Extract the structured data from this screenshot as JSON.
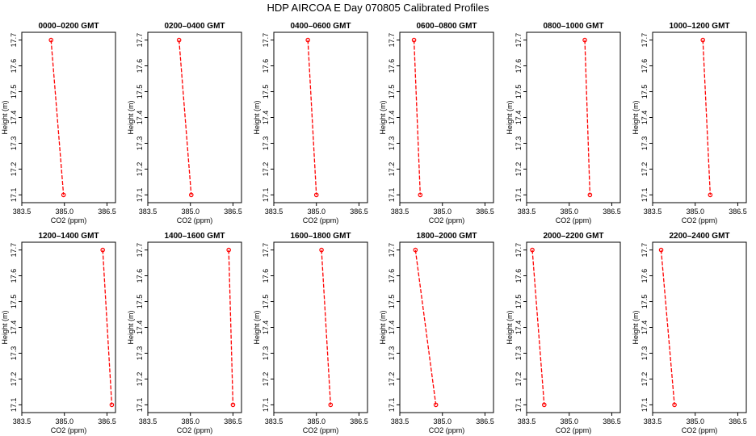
{
  "title": "HDP  AIRCOA E  Day 070805  Calibrated Profiles",
  "chart_data": [
    {
      "type": "line",
      "title": "0000–0200 GMT",
      "xlabel": "CO2 (ppm)",
      "ylabel": "Height (m)",
      "xlim": [
        383.5,
        386.8
      ],
      "ylim": [
        17.07,
        17.73
      ],
      "xticks": [
        "383.5",
        "385.0",
        "386.5"
      ],
      "yticks": [
        "17.1",
        "17.2",
        "17.3",
        "17.4",
        "17.5",
        "17.6",
        "17.7"
      ],
      "series": [
        {
          "color": "#ff0000",
          "x": [
            384.53,
            384.97
          ],
          "y": [
            17.7,
            17.1
          ]
        }
      ]
    },
    {
      "type": "line",
      "title": "0200–0400 GMT",
      "xlabel": "CO2 (ppm)",
      "ylabel": "Height (m)",
      "xlim": [
        383.5,
        386.8
      ],
      "ylim": [
        17.07,
        17.73
      ],
      "xticks": [
        "383.5",
        "385.0",
        "386.5"
      ],
      "yticks": [
        "17.1",
        "17.2",
        "17.3",
        "17.4",
        "17.5",
        "17.6",
        "17.7"
      ],
      "series": [
        {
          "color": "#ff0000",
          "x": [
            384.6,
            385.03
          ],
          "y": [
            17.7,
            17.1
          ]
        }
      ]
    },
    {
      "type": "line",
      "title": "0400–0600 GMT",
      "xlabel": "CO2 (ppm)",
      "ylabel": "Height (m)",
      "xlim": [
        383.5,
        386.8
      ],
      "ylim": [
        17.07,
        17.73
      ],
      "xticks": [
        "383.5",
        "385.0",
        "386.5"
      ],
      "yticks": [
        "17.1",
        "17.2",
        "17.3",
        "17.4",
        "17.5",
        "17.6",
        "17.7"
      ],
      "series": [
        {
          "color": "#ff0000",
          "x": [
            384.7,
            385.0
          ],
          "y": [
            17.7,
            17.1
          ]
        }
      ]
    },
    {
      "type": "line",
      "title": "0600–0800 GMT",
      "xlabel": "CO2 (ppm)",
      "ylabel": "Height (m)",
      "xlim": [
        383.5,
        386.8
      ],
      "ylim": [
        17.07,
        17.73
      ],
      "xticks": [
        "383.5",
        "385.0",
        "386.5"
      ],
      "yticks": [
        "17.1",
        "17.2",
        "17.3",
        "17.4",
        "17.5",
        "17.6",
        "17.7"
      ],
      "series": [
        {
          "color": "#ff0000",
          "x": [
            384.0,
            384.22
          ],
          "y": [
            17.7,
            17.1
          ]
        }
      ]
    },
    {
      "type": "line",
      "title": "0800–1000 GMT",
      "xlabel": "CO2 (ppm)",
      "ylabel": "Height (m)",
      "xlim": [
        383.5,
        386.8
      ],
      "ylim": [
        17.07,
        17.73
      ],
      "xticks": [
        "383.5",
        "385.0",
        "386.5"
      ],
      "yticks": [
        "17.1",
        "17.2",
        "17.3",
        "17.4",
        "17.5",
        "17.6",
        "17.7"
      ],
      "series": [
        {
          "color": "#ff0000",
          "x": [
            385.55,
            385.73
          ],
          "y": [
            17.7,
            17.1
          ]
        }
      ]
    },
    {
      "type": "line",
      "title": "1000–1200 GMT",
      "xlabel": "CO2 (ppm)",
      "ylabel": "Height (m)",
      "xlim": [
        383.5,
        386.8
      ],
      "ylim": [
        17.07,
        17.73
      ],
      "xticks": [
        "383.5",
        "385.0",
        "386.5"
      ],
      "yticks": [
        "17.1",
        "17.2",
        "17.3",
        "17.4",
        "17.5",
        "17.6",
        "17.7"
      ],
      "series": [
        {
          "color": "#ff0000",
          "x": [
            385.27,
            385.53
          ],
          "y": [
            17.7,
            17.1
          ]
        }
      ]
    },
    {
      "type": "line",
      "title": "1200–1400 GMT",
      "xlabel": "CO2 (ppm)",
      "ylabel": "Height (m)",
      "xlim": [
        383.5,
        386.8
      ],
      "ylim": [
        17.07,
        17.73
      ],
      "xticks": [
        "383.5",
        "385.0",
        "386.5"
      ],
      "yticks": [
        "17.1",
        "17.2",
        "17.3",
        "17.4",
        "17.5",
        "17.6",
        "17.7"
      ],
      "series": [
        {
          "color": "#ff0000",
          "x": [
            386.35,
            386.67
          ],
          "y": [
            17.7,
            17.1
          ]
        }
      ]
    },
    {
      "type": "line",
      "title": "1400–1600 GMT",
      "xlabel": "CO2 (ppm)",
      "ylabel": "Height (m)",
      "xlim": [
        383.5,
        386.8
      ],
      "ylim": [
        17.07,
        17.73
      ],
      "xticks": [
        "383.5",
        "385.0",
        "386.5"
      ],
      "yticks": [
        "17.1",
        "17.2",
        "17.3",
        "17.4",
        "17.5",
        "17.6",
        "17.7"
      ],
      "series": [
        {
          "color": "#ff0000",
          "x": [
            386.35,
            386.5
          ],
          "y": [
            17.7,
            17.1
          ]
        }
      ]
    },
    {
      "type": "line",
      "title": "1600–1800 GMT",
      "xlabel": "CO2 (ppm)",
      "ylabel": "Height (m)",
      "xlim": [
        383.5,
        386.8
      ],
      "ylim": [
        17.07,
        17.73
      ],
      "xticks": [
        "383.5",
        "385.0",
        "386.5"
      ],
      "yticks": [
        "17.1",
        "17.2",
        "17.3",
        "17.4",
        "17.5",
        "17.6",
        "17.7"
      ],
      "series": [
        {
          "color": "#ff0000",
          "x": [
            385.18,
            385.5
          ],
          "y": [
            17.7,
            17.1
          ]
        }
      ]
    },
    {
      "type": "line",
      "title": "1800–2000 GMT",
      "xlabel": "CO2 (ppm)",
      "ylabel": "Height (m)",
      "xlim": [
        383.5,
        386.8
      ],
      "ylim": [
        17.07,
        17.73
      ],
      "xticks": [
        "383.5",
        "385.0",
        "386.5"
      ],
      "yticks": [
        "17.1",
        "17.2",
        "17.3",
        "17.4",
        "17.5",
        "17.6",
        "17.7"
      ],
      "series": [
        {
          "color": "#ff0000",
          "x": [
            384.05,
            384.77
          ],
          "y": [
            17.7,
            17.1
          ]
        }
      ]
    },
    {
      "type": "line",
      "title": "2000–2200 GMT",
      "xlabel": "CO2 (ppm)",
      "ylabel": "Height (m)",
      "xlim": [
        383.5,
        386.8
      ],
      "ylim": [
        17.07,
        17.73
      ],
      "xticks": [
        "383.5",
        "385.0",
        "386.5"
      ],
      "yticks": [
        "17.1",
        "17.2",
        "17.3",
        "17.4",
        "17.5",
        "17.6",
        "17.7"
      ],
      "series": [
        {
          "color": "#ff0000",
          "x": [
            383.7,
            384.12
          ],
          "y": [
            17.7,
            17.1
          ]
        }
      ]
    },
    {
      "type": "line",
      "title": "2200–2400 GMT",
      "xlabel": "CO2 (ppm)",
      "ylabel": "Height (m)",
      "xlim": [
        383.5,
        386.8
      ],
      "ylim": [
        17.07,
        17.73
      ],
      "xticks": [
        "383.5",
        "385.0",
        "386.5"
      ],
      "yticks": [
        "17.1",
        "17.2",
        "17.3",
        "17.4",
        "17.5",
        "17.6",
        "17.7"
      ],
      "series": [
        {
          "color": "#ff0000",
          "x": [
            383.8,
            384.27
          ],
          "y": [
            17.7,
            17.1
          ]
        }
      ]
    }
  ]
}
